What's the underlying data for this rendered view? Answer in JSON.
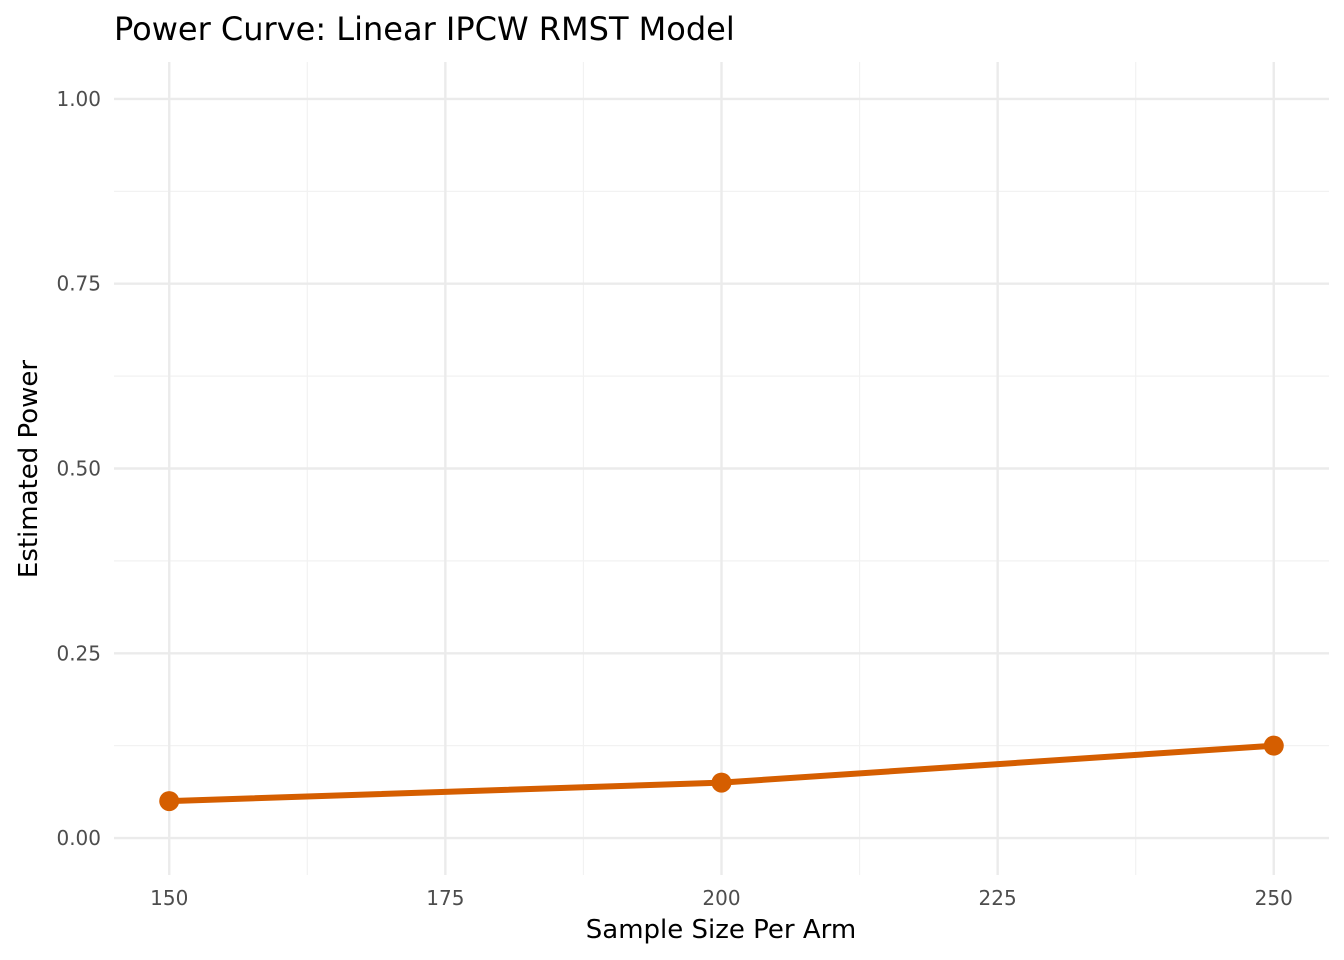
{
  "chart_data": {
    "type": "line",
    "title": "Power Curve: Linear IPCW RMST Model",
    "xlabel": "Sample Size Per Arm",
    "ylabel": "Estimated Power",
    "x": [
      150,
      200,
      250
    ],
    "series": [
      {
        "values": [
          0.05,
          0.075,
          0.125
        ]
      }
    ],
    "xlim": [
      145,
      255
    ],
    "ylim": [
      -0.05,
      1.05
    ],
    "x_ticks": [
      150,
      175,
      200,
      225,
      250
    ],
    "x_tick_labels": [
      "150",
      "175",
      "200",
      "225",
      "250"
    ],
    "y_ticks": [
      0,
      0.25,
      0.5,
      0.75,
      1
    ],
    "y_tick_labels": [
      "0.00",
      "0.25",
      "0.50",
      "0.75",
      "1.00"
    ],
    "grid": true,
    "line_color": "#d55e00",
    "point_color": "#d55e00",
    "markers": true
  }
}
